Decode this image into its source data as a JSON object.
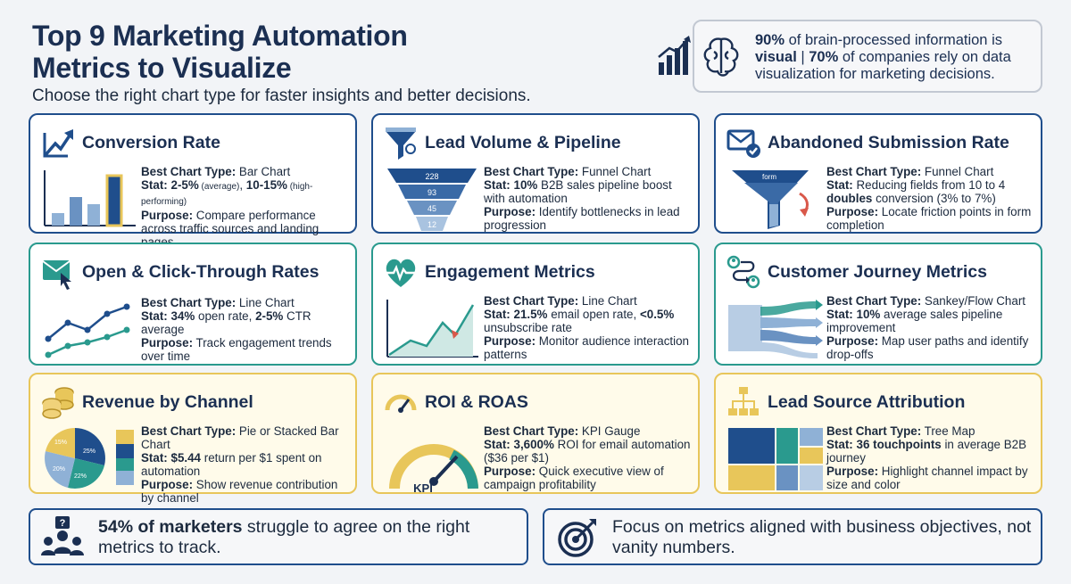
{
  "header": {
    "title_line1": "Top 9 Marketing Automation",
    "title_line2": "Metrics to Visualize",
    "subtitle": "Choose the right chart type for faster insights and better decisions."
  },
  "hero": {
    "stat1": "90%",
    "text1": " of brain-processed information is ",
    "bold2": "visual",
    "sep": " | ",
    "stat2": "70%",
    "text2": " of companies rely on data visualization for marketing decisions."
  },
  "labels": {
    "best_chart": "Best Chart Type:",
    "stat": "Stat:",
    "purpose": "Purpose:"
  },
  "cards": [
    {
      "title": "Conversion Rate",
      "chart_type": "Bar Chart",
      "stat_b1": "2-5%",
      "stat_s1": " (average)",
      "stat_t1": ", ",
      "stat_b2": "10-15%",
      "stat_s2": " (high-performing)",
      "purpose": "Compare performance across traffic sources and landing pages",
      "accent": "#1f4e8c",
      "icon": "trend-arrows-icon"
    },
    {
      "title": "Lead Volume & Pipeline",
      "chart_type": "Funnel Chart",
      "stat_b1": "10%",
      "stat_t1": " B2B sales pipeline boost with automation",
      "purpose": "Identify bottlenecks in lead progression",
      "funnel_values": [
        "228",
        "93",
        "45",
        "12"
      ],
      "accent": "#1f4e8c",
      "icon": "funnel-icon"
    },
    {
      "title": "Abandoned Submission Rate",
      "chart_type": "Funnel Chart",
      "stat_t0": "Reducing fields from 10 to 4 ",
      "stat_b1": "doubles",
      "stat_t1": " conversion (3% to 7%)",
      "purpose": "Locate friction points in form completion",
      "funnel_label": "form",
      "accent": "#1f4e8c",
      "icon": "envelope-check-icon"
    },
    {
      "title": "Open & Click-Through Rates",
      "chart_type": "Line Chart",
      "stat_b1": "34%",
      "stat_t1": " open rate, ",
      "stat_b2": "2-5%",
      "stat_t2": " CTR average",
      "purpose": "Track engagement trends over time",
      "accent": "#2a9a8e",
      "icon": "email-click-icon"
    },
    {
      "title": "Engagement Metrics",
      "chart_type": "Line Chart",
      "stat_b1": "21.5%",
      "stat_t1": " email open rate, ",
      "stat_b2": "<0.5%",
      "stat_t2": " unsubscribe rate",
      "purpose": "Monitor audience interaction patterns",
      "accent": "#2a9a8e",
      "icon": "heartbeat-icon"
    },
    {
      "title": "Customer Journey Metrics",
      "chart_type": "Sankey/Flow Chart",
      "stat_b1": "10%",
      "stat_t1": " average sales pipeline improvement",
      "purpose": "Map user paths and identify drop-offs",
      "accent": "#2a9a8e",
      "icon": "journey-icon"
    },
    {
      "title": "Revenue by Channel",
      "chart_type": "Pie or Stacked Bar Chart",
      "stat_b1": "$5.44",
      "stat_t1": " return per $1 spent on automation",
      "purpose": "Show revenue contribution by channel",
      "pie_labels": [
        "15%",
        "25%",
        "20%",
        "22%"
      ],
      "accent": "#e8c65a",
      "icon": "coins-icon"
    },
    {
      "title": "ROI & ROAS",
      "chart_type": "KPI Gauge",
      "stat_b1": "3,600%",
      "stat_t1": " ROI for email automation ($36 per $1)",
      "purpose": "Quick executive view of campaign profitability",
      "gauge_label": "KPI",
      "accent": "#e8c65a",
      "icon": "gauge-icon"
    },
    {
      "title": "Lead Source Attribution",
      "chart_type": "Tree Map",
      "stat_b1": "36 touchpoints",
      "stat_t1": " in average B2B journey",
      "purpose": "Highlight channel impact by size and color",
      "accent": "#e8c65a",
      "icon": "hierarchy-icon"
    }
  ],
  "footer": {
    "left_bold": "54% of marketers",
    "left_text": " struggle to agree on the right metrics to track.",
    "right_text": "Focus on metrics aligned with business objectives, not vanity numbers."
  },
  "colors": {
    "navy": "#1b2f52",
    "blue": "#1f4e8c",
    "teal": "#2a9a8e",
    "gold": "#e8c65a",
    "light_blue": "#8fb1d6"
  }
}
